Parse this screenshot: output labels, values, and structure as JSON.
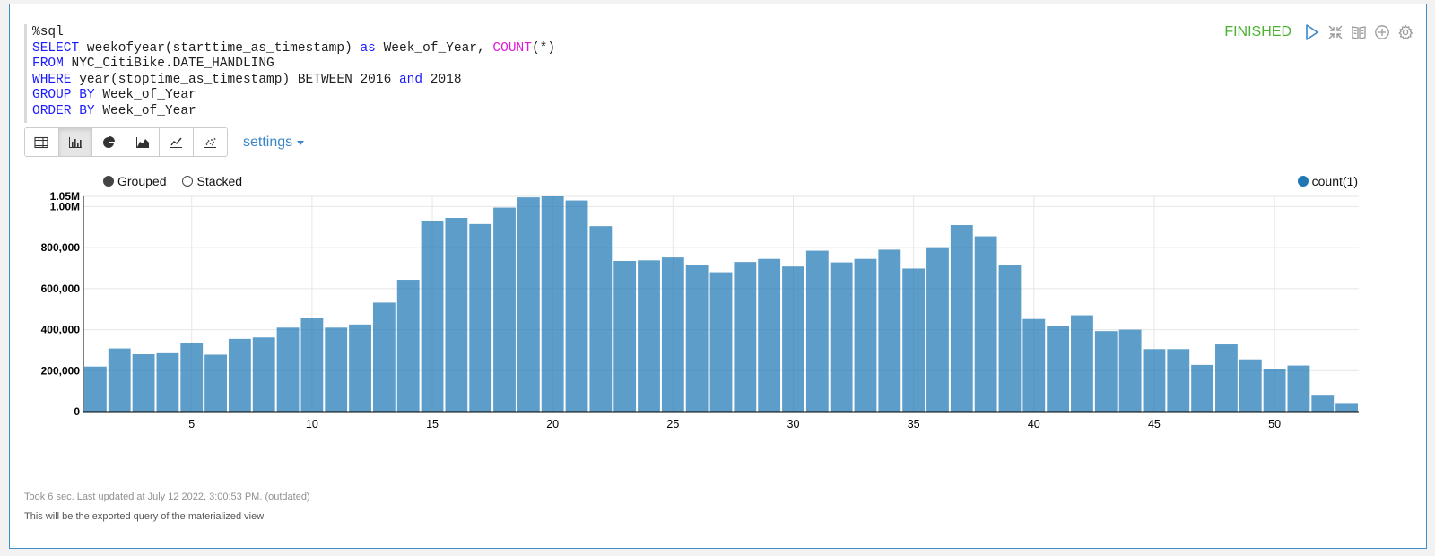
{
  "editor": {
    "lines": [
      [
        {
          "t": "%sql",
          "c": "plain"
        }
      ],
      [
        {
          "t": "SELECT",
          "c": "kw"
        },
        {
          "t": " weekofyear(starttime_as_timestamp) ",
          "c": "plain"
        },
        {
          "t": "as",
          "c": "kw"
        },
        {
          "t": " Week_of_Year, ",
          "c": "plain"
        },
        {
          "t": "COUNT",
          "c": "fn"
        },
        {
          "t": "(*)",
          "c": "plain"
        }
      ],
      [
        {
          "t": "FROM",
          "c": "kw"
        },
        {
          "t": " NYC_CitiBike.DATE_HANDLING",
          "c": "plain"
        }
      ],
      [
        {
          "t": "WHERE",
          "c": "kw"
        },
        {
          "t": " year(stoptime_as_timestamp) BETWEEN 2016 ",
          "c": "plain"
        },
        {
          "t": "and",
          "c": "kw"
        },
        {
          "t": " 2018",
          "c": "plain"
        }
      ],
      [
        {
          "t": "GROUP BY",
          "c": "kw"
        },
        {
          "t": " Week_of_Year",
          "c": "plain"
        }
      ],
      [
        {
          "t": "ORDER BY",
          "c": "kw"
        },
        {
          "t": " Week_of_Year",
          "c": "plain"
        }
      ]
    ]
  },
  "status": {
    "text": "FINISHED",
    "icons": [
      "play-icon",
      "collapse-icon",
      "book-icon",
      "add-icon",
      "gear-icon"
    ]
  },
  "toolbar": {
    "buttons": [
      "table-icon",
      "bar-chart-icon",
      "pie-chart-icon",
      "area-chart-icon",
      "line-chart-icon",
      "scatter-chart-icon"
    ],
    "active": "bar-chart-icon",
    "settings_label": "settings"
  },
  "legend": {
    "grouped_label": "Grouped",
    "stacked_label": "Stacked",
    "series_label": "count(1)"
  },
  "chart_data": {
    "type": "bar",
    "x": [
      1,
      2,
      3,
      4,
      5,
      6,
      7,
      8,
      9,
      10,
      11,
      12,
      13,
      14,
      15,
      16,
      17,
      18,
      19,
      20,
      21,
      22,
      23,
      24,
      25,
      26,
      27,
      28,
      29,
      30,
      31,
      32,
      33,
      34,
      35,
      36,
      37,
      38,
      39,
      40,
      41,
      42,
      43,
      44,
      45,
      46,
      47,
      48,
      49,
      50,
      51,
      52,
      53
    ],
    "series": [
      {
        "name": "count(1)",
        "color": "#1f77b4",
        "values": [
          220000,
          308000,
          280000,
          285000,
          335000,
          278000,
          355000,
          362000,
          410000,
          455000,
          410000,
          425000,
          532000,
          643000,
          932000,
          945000,
          915000,
          995000,
          1045000,
          1050000,
          1030000,
          905000,
          735000,
          738000,
          752000,
          715000,
          680000,
          730000,
          745000,
          708000,
          785000,
          728000,
          745000,
          790000,
          698000,
          802000,
          910000,
          855000,
          713000,
          452000,
          420000,
          470000,
          393000,
          400000,
          305000,
          305000,
          228000,
          328000,
          255000,
          210000,
          225000,
          78000,
          42000
        ]
      }
    ],
    "xticks": [
      5,
      10,
      15,
      20,
      25,
      30,
      35,
      40,
      45,
      50
    ],
    "ytick_labels": [
      "0",
      "200,000",
      "400,000",
      "600,000",
      "800,000",
      "1.00M",
      "1.05M"
    ],
    "yticks": [
      0,
      200000,
      400000,
      600000,
      800000,
      1000000,
      1050000
    ],
    "ylim": [
      0,
      1050000
    ],
    "grid": true,
    "legend_position": "top-right"
  },
  "footer": {
    "timing": "Took 6 sec. Last updated at July 12 2022, 3:00:53 PM. (outdated)",
    "note": "This will be the exported query of the materialized view"
  }
}
